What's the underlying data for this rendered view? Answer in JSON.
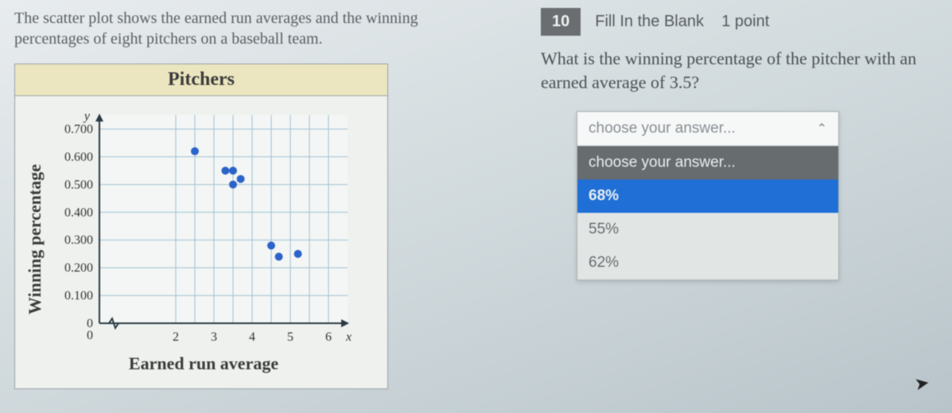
{
  "prompt": "The scatter plot shows the earned run averages and the winning percentages of eight pitchers on a baseball team.",
  "chart": {
    "type": "scatter",
    "title": "Pitchers",
    "y_axis_title": "Winning percentage",
    "x_axis_title": "Earned run average",
    "y_var": "y",
    "x_var": "x",
    "x_ticks": [
      0,
      2,
      3,
      4,
      5,
      6
    ],
    "y_ticks": [
      0,
      0.1,
      0.2,
      0.3,
      0.4,
      0.5,
      0.6,
      0.7
    ],
    "y_tick_labels": [
      "0",
      "0.100",
      "0.200",
      "0.300",
      "0.400",
      "0.500",
      "0.600",
      "0.700"
    ],
    "xlim": [
      0,
      6.5
    ],
    "ylim": [
      0,
      0.75
    ],
    "points": [
      {
        "x": 2.5,
        "y": 0.62
      },
      {
        "x": 3.3,
        "y": 0.55
      },
      {
        "x": 3.5,
        "y": 0.55
      },
      {
        "x": 3.5,
        "y": 0.5
      },
      {
        "x": 3.7,
        "y": 0.52
      },
      {
        "x": 4.5,
        "y": 0.28
      },
      {
        "x": 4.7,
        "y": 0.24
      },
      {
        "x": 5.2,
        "y": 0.25
      }
    ],
    "point_color": "#2b64c9",
    "point_radius": 5,
    "grid_color": "#9fbfd5",
    "axis_color": "#2b3a44",
    "background_color": "#f3f6f4",
    "tick_font_size": 16,
    "title_font_size": 24,
    "axis_title_font_size": 22
  },
  "question": {
    "number": "10",
    "type_label": "Fill In the Blank",
    "points_label": "1 point",
    "text": "What is the winning percentage of the pitcher with an earned average of 3.5?"
  },
  "dropdown": {
    "placeholder": "choose your answer...",
    "options_header": "choose your answer...",
    "options": [
      {
        "label": "68%",
        "highlighted": true
      },
      {
        "label": "55%",
        "highlighted": false
      },
      {
        "label": "62%",
        "highlighted": false
      }
    ]
  },
  "colors": {
    "dropdown_highlight": "#1f6fd6",
    "dropdown_header_bg": "#676c6f",
    "qnum_bg": "#6a6e70"
  }
}
